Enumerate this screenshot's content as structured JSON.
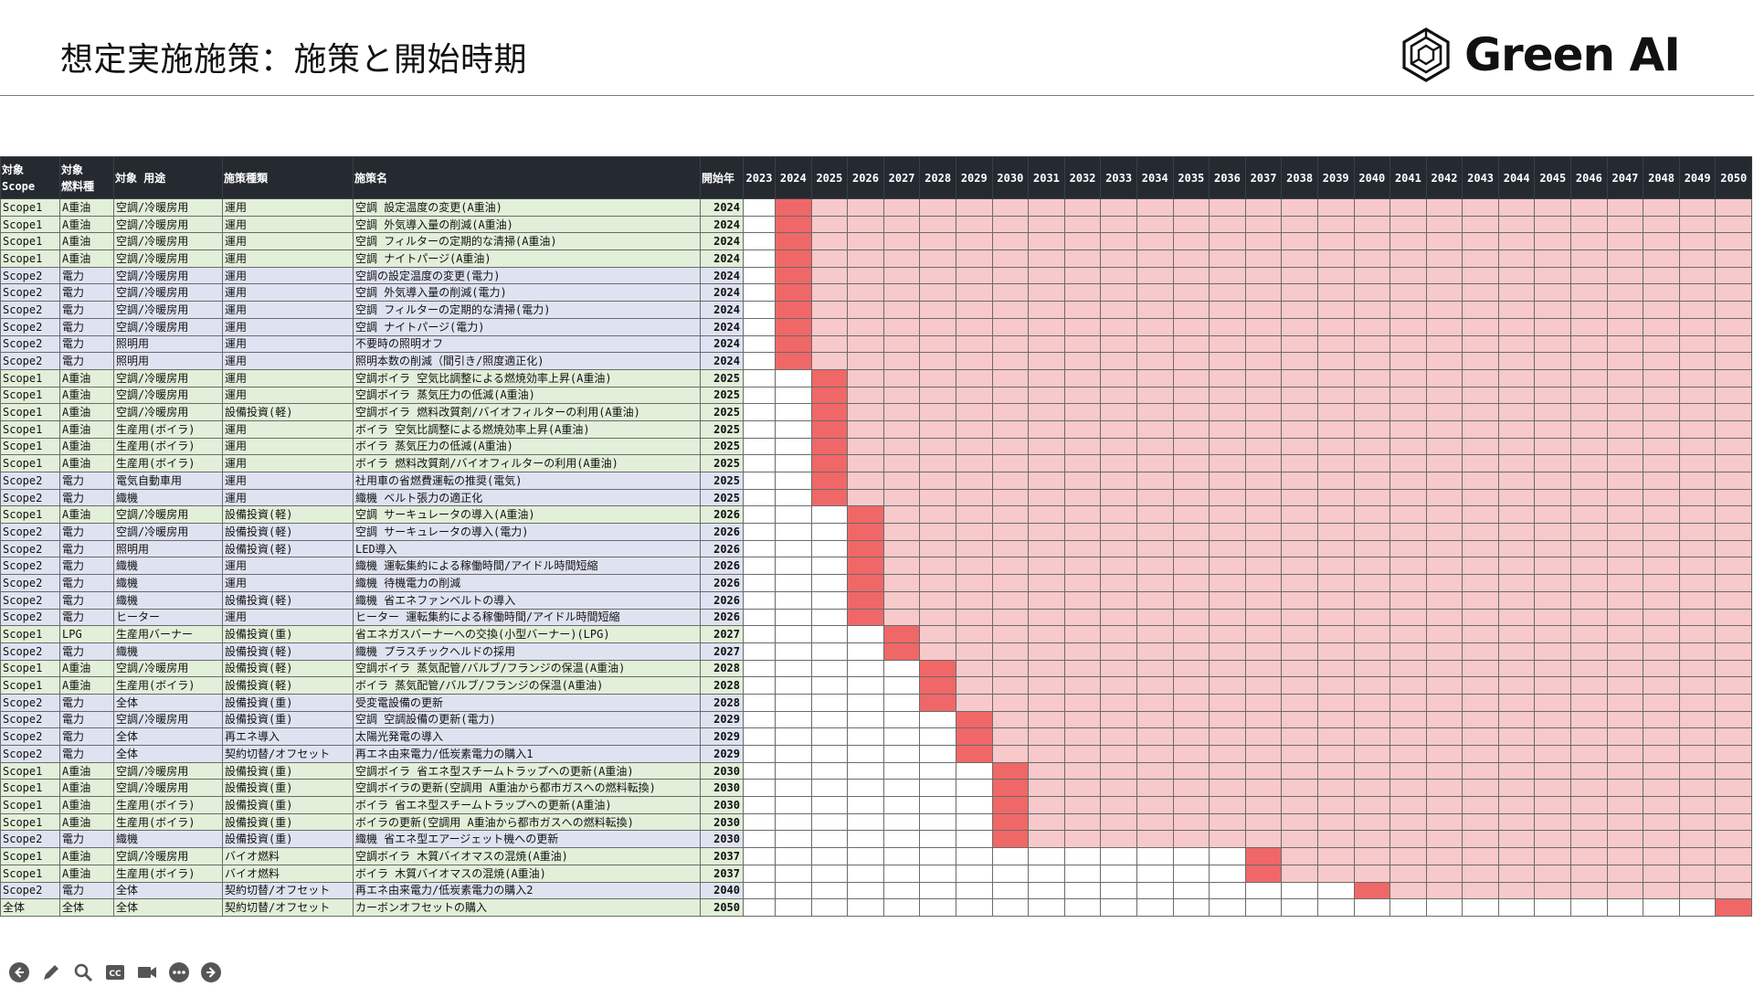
{
  "slide": {
    "title": "想定実施施策：施策と開始時期",
    "logo_text": "Green AI"
  },
  "colors": {
    "header_bg": "#252a31",
    "scope1_bg": "#e2efd9",
    "scope2_bg": "#dfe3f1",
    "start_year_cell": "#f06767",
    "following_years_cell": "#f8c9ca"
  },
  "table": {
    "headers": {
      "scope": "対象\nScope",
      "fuel": "対象\n燃料種",
      "use": "対象 用途",
      "type": "施策種類",
      "name": "施策名",
      "start": "開始年"
    },
    "years": [
      "2023",
      "2024",
      "2025",
      "2026",
      "2027",
      "2028",
      "2029",
      "2030",
      "2031",
      "2032",
      "2033",
      "2034",
      "2035",
      "2036",
      "2037",
      "2038",
      "2039",
      "2040",
      "2041",
      "2042",
      "2043",
      "2044",
      "2045",
      "2046",
      "2047",
      "2048",
      "2049",
      "2050"
    ],
    "rows": [
      {
        "scope": "Scope1",
        "fuel": "A重油",
        "use": "空調/冷暖房用",
        "type": "運用",
        "name": "空調 設定温度の変更(A重油)",
        "start": "2024"
      },
      {
        "scope": "Scope1",
        "fuel": "A重油",
        "use": "空調/冷暖房用",
        "type": "運用",
        "name": "空調 外気導入量の削減(A重油)",
        "start": "2024"
      },
      {
        "scope": "Scope1",
        "fuel": "A重油",
        "use": "空調/冷暖房用",
        "type": "運用",
        "name": "空調 フィルターの定期的な清掃(A重油)",
        "start": "2024"
      },
      {
        "scope": "Scope1",
        "fuel": "A重油",
        "use": "空調/冷暖房用",
        "type": "運用",
        "name": "空調 ナイトパージ(A重油)",
        "start": "2024"
      },
      {
        "scope": "Scope2",
        "fuel": "電力",
        "use": "空調/冷暖房用",
        "type": "運用",
        "name": "空調の設定温度の変更(電力)",
        "start": "2024"
      },
      {
        "scope": "Scope2",
        "fuel": "電力",
        "use": "空調/冷暖房用",
        "type": "運用",
        "name": "空調 外気導入量の削減(電力)",
        "start": "2024"
      },
      {
        "scope": "Scope2",
        "fuel": "電力",
        "use": "空調/冷暖房用",
        "type": "運用",
        "name": "空調 フィルターの定期的な清掃(電力)",
        "start": "2024"
      },
      {
        "scope": "Scope2",
        "fuel": "電力",
        "use": "空調/冷暖房用",
        "type": "運用",
        "name": "空調 ナイトパージ(電力)",
        "start": "2024"
      },
      {
        "scope": "Scope2",
        "fuel": "電力",
        "use": "照明用",
        "type": "運用",
        "name": "不要時の照明オフ",
        "start": "2024"
      },
      {
        "scope": "Scope2",
        "fuel": "電力",
        "use": "照明用",
        "type": "運用",
        "name": "照明本数の削減（間引き/照度適正化)",
        "start": "2024"
      },
      {
        "scope": "Scope1",
        "fuel": "A重油",
        "use": "空調/冷暖房用",
        "type": "運用",
        "name": "空調ボイラ 空気比調整による燃焼効率上昇(A重油)",
        "start": "2025"
      },
      {
        "scope": "Scope1",
        "fuel": "A重油",
        "use": "空調/冷暖房用",
        "type": "運用",
        "name": "空調ボイラ 蒸気圧力の低減(A重油)",
        "start": "2025"
      },
      {
        "scope": "Scope1",
        "fuel": "A重油",
        "use": "空調/冷暖房用",
        "type": "設備投資(軽)",
        "name": "空調ボイラ 燃料改質剤/バイオフィルターの利用(A重油)",
        "start": "2025"
      },
      {
        "scope": "Scope1",
        "fuel": "A重油",
        "use": "生産用(ボイラ)",
        "type": "運用",
        "name": "ボイラ 空気比調整による燃焼効率上昇(A重油)",
        "start": "2025"
      },
      {
        "scope": "Scope1",
        "fuel": "A重油",
        "use": "生産用(ボイラ)",
        "type": "運用",
        "name": "ボイラ 蒸気圧力の低減(A重油)",
        "start": "2025"
      },
      {
        "scope": "Scope1",
        "fuel": "A重油",
        "use": "生産用(ボイラ)",
        "type": "運用",
        "name": "ボイラ 燃料改質剤/バイオフィルターの利用(A重油)",
        "start": "2025"
      },
      {
        "scope": "Scope2",
        "fuel": "電力",
        "use": "電気自動車用",
        "type": "運用",
        "name": "社用車の省燃費運転の推奨(電気)",
        "start": "2025"
      },
      {
        "scope": "Scope2",
        "fuel": "電力",
        "use": "織機",
        "type": "運用",
        "name": "織機 ベルト張力の適正化",
        "start": "2025"
      },
      {
        "scope": "Scope1",
        "fuel": "A重油",
        "use": "空調/冷暖房用",
        "type": "設備投資(軽)",
        "name": "空調 サーキュレータの導入(A重油)",
        "start": "2026"
      },
      {
        "scope": "Scope2",
        "fuel": "電力",
        "use": "空調/冷暖房用",
        "type": "設備投資(軽)",
        "name": "空調 サーキュレータの導入(電力)",
        "start": "2026"
      },
      {
        "scope": "Scope2",
        "fuel": "電力",
        "use": "照明用",
        "type": "設備投資(軽)",
        "name": "LED導入",
        "start": "2026"
      },
      {
        "scope": "Scope2",
        "fuel": "電力",
        "use": "織機",
        "type": "運用",
        "name": "織機 運転集約による稼働時間/アイドル時間短縮",
        "start": "2026"
      },
      {
        "scope": "Scope2",
        "fuel": "電力",
        "use": "織機",
        "type": "運用",
        "name": "織機 待機電力の削減",
        "start": "2026"
      },
      {
        "scope": "Scope2",
        "fuel": "電力",
        "use": "織機",
        "type": "設備投資(軽)",
        "name": "織機 省エネファンベルトの導入",
        "start": "2026"
      },
      {
        "scope": "Scope2",
        "fuel": "電力",
        "use": "ヒーター",
        "type": "運用",
        "name": "ヒーター 運転集約による稼働時間/アイドル時間短縮",
        "start": "2026"
      },
      {
        "scope": "Scope1",
        "fuel": "LPG",
        "use": "生産用バーナー",
        "type": "設備投資(重)",
        "name": "省エネガスバーナーへの交換(小型バーナー)(LPG)",
        "start": "2027"
      },
      {
        "scope": "Scope2",
        "fuel": "電力",
        "use": "織機",
        "type": "設備投資(軽)",
        "name": "織機 プラスチックヘルドの採用",
        "start": "2027"
      },
      {
        "scope": "Scope1",
        "fuel": "A重油",
        "use": "空調/冷暖房用",
        "type": "設備投資(軽)",
        "name": "空調ボイラ 蒸気配管/バルブ/フランジの保温(A重油)",
        "start": "2028"
      },
      {
        "scope": "Scope1",
        "fuel": "A重油",
        "use": "生産用(ボイラ)",
        "type": "設備投資(軽)",
        "name": "ボイラ 蒸気配管/バルブ/フランジの保温(A重油)",
        "start": "2028"
      },
      {
        "scope": "Scope2",
        "fuel": "電力",
        "use": "全体",
        "type": "設備投資(重)",
        "name": "受変電設備の更新",
        "start": "2028"
      },
      {
        "scope": "Scope2",
        "fuel": "電力",
        "use": "空調/冷暖房用",
        "type": "設備投資(重)",
        "name": "空調 空調設備の更新(電力)",
        "start": "2029"
      },
      {
        "scope": "Scope2",
        "fuel": "電力",
        "use": "全体",
        "type": "再エネ導入",
        "name": "太陽光発電の導入",
        "start": "2029"
      },
      {
        "scope": "Scope2",
        "fuel": "電力",
        "use": "全体",
        "type": "契約切替/オフセット",
        "name": "再エネ由来電力/低炭素電力の購入1",
        "start": "2029"
      },
      {
        "scope": "Scope1",
        "fuel": "A重油",
        "use": "空調/冷暖房用",
        "type": "設備投資(重)",
        "name": "空調ボイラ 省エネ型スチームトラップへの更新(A重油)",
        "start": "2030"
      },
      {
        "scope": "Scope1",
        "fuel": "A重油",
        "use": "空調/冷暖房用",
        "type": "設備投資(重)",
        "name": "空調ボイラの更新(空調用 A重油から都市ガスへの燃料転換)",
        "start": "2030"
      },
      {
        "scope": "Scope1",
        "fuel": "A重油",
        "use": "生産用(ボイラ)",
        "type": "設備投資(重)",
        "name": "ボイラ 省エネ型スチームトラップへの更新(A重油)",
        "start": "2030"
      },
      {
        "scope": "Scope1",
        "fuel": "A重油",
        "use": "生産用(ボイラ)",
        "type": "設備投資(重)",
        "name": "ボイラの更新(空調用 A重油から都市ガスへの燃料転換)",
        "start": "2030"
      },
      {
        "scope": "Scope2",
        "fuel": "電力",
        "use": "織機",
        "type": "設備投資(重)",
        "name": "織機 省エネ型エアージェット機への更新",
        "start": "2030"
      },
      {
        "scope": "Scope1",
        "fuel": "A重油",
        "use": "空調/冷暖房用",
        "type": "バイオ燃料",
        "name": "空調ボイラ 木質バイオマスの混焼(A重油)",
        "start": "2037"
      },
      {
        "scope": "Scope1",
        "fuel": "A重油",
        "use": "生産用(ボイラ)",
        "type": "バイオ燃料",
        "name": "ボイラ 木質バイオマスの混焼(A重油)",
        "start": "2037"
      },
      {
        "scope": "Scope2",
        "fuel": "電力",
        "use": "全体",
        "type": "契約切替/オフセット",
        "name": "再エネ由来電力/低炭素電力の購入2",
        "start": "2040"
      },
      {
        "scope": "全体",
        "fuel": "全体",
        "use": "全体",
        "type": "契約切替/オフセット",
        "name": "カーボンオフセットの購入",
        "start": "2050"
      }
    ]
  },
  "toolbar": {
    "icons": [
      "back-arrow-icon",
      "pen-icon",
      "zoom-icon",
      "captions-icon",
      "video-icon",
      "more-icon",
      "forward-arrow-icon"
    ]
  }
}
